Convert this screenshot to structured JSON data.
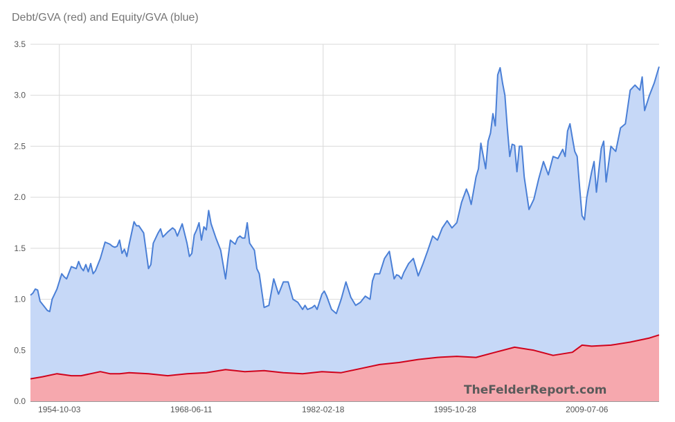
{
  "chart_data": {
    "type": "area",
    "title": "Debt/GVA (red) and Equity/GVA (blue)",
    "watermark": "TheFelderReport.com",
    "xlabel": "",
    "ylabel": "",
    "ylim": [
      0,
      3.5
    ],
    "y_ticks": [
      "0.0",
      "0.5",
      "1.0",
      "1.5",
      "2.0",
      "2.5",
      "3.0",
      "3.5"
    ],
    "x_ticks": [
      "1954-10-03",
      "1968-06-11",
      "1982-02-18",
      "1995-10-28",
      "2009-07-06"
    ],
    "x_tick_years": [
      1954.75,
      1968.44,
      1982.13,
      1995.82,
      2009.51
    ],
    "x_range": [
      1951.75,
      2017.0
    ],
    "grid": true,
    "legend": "none",
    "colors": {
      "equity_line": "#4a7fd6",
      "equity_fill": "#c6d8f7",
      "debt_line": "#d0021b",
      "debt_fill": "#f6a8ae"
    },
    "series": [
      {
        "name": "Equity/GVA",
        "color": "blue",
        "x": [
          1951.75,
          1952.0,
          1952.25,
          1952.5,
          1952.75,
          1953.0,
          1953.5,
          1953.75,
          1954.0,
          1954.5,
          1955.0,
          1955.25,
          1955.5,
          1956.0,
          1956.5,
          1956.75,
          1957.0,
          1957.25,
          1957.5,
          1957.75,
          1958.0,
          1958.25,
          1958.5,
          1959.0,
          1959.5,
          1960.0,
          1960.25,
          1960.5,
          1960.75,
          1961.0,
          1961.25,
          1961.5,
          1961.75,
          1962.0,
          1962.5,
          1962.75,
          1963.0,
          1963.5,
          1964.0,
          1964.25,
          1964.5,
          1965.0,
          1965.25,
          1965.5,
          1966.0,
          1966.5,
          1966.75,
          1967.0,
          1967.5,
          1968.0,
          1968.25,
          1968.5,
          1968.75,
          1969.0,
          1969.25,
          1969.5,
          1969.75,
          1970.0,
          1970.25,
          1970.5,
          1971.0,
          1971.5,
          1972.0,
          1972.25,
          1972.5,
          1973.0,
          1973.25,
          1973.5,
          1973.75,
          1974.0,
          1974.25,
          1974.5,
          1975.0,
          1975.25,
          1975.5,
          1976.0,
          1976.5,
          1977.0,
          1977.5,
          1978.0,
          1978.5,
          1979.0,
          1979.5,
          1980.0,
          1980.25,
          1980.5,
          1981.0,
          1981.25,
          1981.5,
          1982.0,
          1982.25,
          1982.5,
          1983.0,
          1983.5,
          1984.0,
          1984.5,
          1985.0,
          1985.5,
          1986.0,
          1986.5,
          1987.0,
          1987.25,
          1987.5,
          1988.0,
          1988.5,
          1989.0,
          1989.5,
          1989.75,
          1990.0,
          1990.25,
          1990.5,
          1991.0,
          1991.5,
          1992.0,
          1992.5,
          1993.0,
          1993.5,
          1994.0,
          1994.5,
          1995.0,
          1995.5,
          1996.0,
          1996.5,
          1997.0,
          1997.25,
          1997.5,
          1998.0,
          1998.25,
          1998.5,
          1999.0,
          1999.25,
          1999.5,
          1999.75,
          2000.0,
          2000.25,
          2000.5,
          2000.75,
          2001.0,
          2001.25,
          2001.5,
          2001.75,
          2002.0,
          2002.25,
          2002.5,
          2002.75,
          2003.0,
          2003.5,
          2004.0,
          2004.5,
          2005.0,
          2005.5,
          2006.0,
          2006.5,
          2007.0,
          2007.25,
          2007.5,
          2007.75,
          2008.0,
          2008.25,
          2008.5,
          2008.75,
          2009.0,
          2009.25,
          2009.5,
          2010.0,
          2010.25,
          2010.5,
          2011.0,
          2011.25,
          2011.5,
          2012.0,
          2012.5,
          2013.0,
          2013.5,
          2014.0,
          2014.5,
          2015.0,
          2015.25,
          2015.5,
          2016.0,
          2016.5,
          2017.0
        ],
        "values": [
          1.04,
          1.06,
          1.1,
          1.09,
          0.98,
          0.95,
          0.89,
          0.88,
          1.0,
          1.1,
          1.25,
          1.22,
          1.2,
          1.32,
          1.3,
          1.37,
          1.31,
          1.28,
          1.34,
          1.27,
          1.35,
          1.25,
          1.28,
          1.4,
          1.56,
          1.54,
          1.52,
          1.51,
          1.52,
          1.58,
          1.45,
          1.49,
          1.42,
          1.54,
          1.76,
          1.72,
          1.72,
          1.65,
          1.3,
          1.34,
          1.55,
          1.65,
          1.69,
          1.61,
          1.66,
          1.7,
          1.68,
          1.62,
          1.74,
          1.55,
          1.42,
          1.45,
          1.63,
          1.68,
          1.75,
          1.58,
          1.71,
          1.68,
          1.87,
          1.74,
          1.6,
          1.48,
          1.2,
          1.4,
          1.58,
          1.54,
          1.6,
          1.62,
          1.6,
          1.6,
          1.75,
          1.55,
          1.48,
          1.3,
          1.25,
          0.92,
          0.94,
          1.2,
          1.05,
          1.17,
          1.17,
          1.0,
          0.97,
          0.9,
          0.94,
          0.9,
          0.92,
          0.94,
          0.9,
          1.05,
          1.08,
          1.03,
          0.9,
          0.86,
          1.0,
          1.17,
          1.02,
          0.94,
          0.97,
          1.03,
          1.0,
          1.18,
          1.25,
          1.25,
          1.4,
          1.47,
          1.2,
          1.24,
          1.23,
          1.2,
          1.26,
          1.35,
          1.4,
          1.23,
          1.35,
          1.48,
          1.62,
          1.58,
          1.7,
          1.77,
          1.7,
          1.75,
          1.95,
          2.08,
          2.02,
          1.93,
          2.2,
          2.28,
          2.53,
          2.28,
          2.55,
          2.63,
          2.82,
          2.7,
          3.2,
          3.27,
          3.12,
          3.0,
          2.68,
          2.4,
          2.52,
          2.51,
          2.25,
          2.5,
          2.5,
          2.2,
          1.88,
          1.98,
          2.18,
          2.35,
          2.22,
          2.4,
          2.38,
          2.47,
          2.4,
          2.65,
          2.72,
          2.58,
          2.45,
          2.4,
          2.1,
          1.82,
          1.78,
          2.0,
          2.25,
          2.35,
          2.05,
          2.48,
          2.55,
          2.15,
          2.5,
          2.45,
          2.68,
          2.72,
          3.05,
          3.1,
          3.05,
          3.18,
          2.85,
          3.0,
          3.12,
          3.28
        ]
      },
      {
        "name": "Debt/GVA",
        "color": "red",
        "x": [
          1951.75,
          1953.0,
          1954.5,
          1956.0,
          1957.0,
          1958.0,
          1959.0,
          1960.0,
          1961.0,
          1962.0,
          1964.0,
          1966.0,
          1968.0,
          1970.0,
          1972.0,
          1974.0,
          1976.0,
          1978.0,
          1980.0,
          1982.0,
          1984.0,
          1986.0,
          1988.0,
          1990.0,
          1992.0,
          1994.0,
          1996.0,
          1998.0,
          2000.0,
          2002.0,
          2004.0,
          2006.0,
          2008.0,
          2009.0,
          2010.0,
          2012.0,
          2014.0,
          2016.0,
          2017.0
        ],
        "values": [
          0.22,
          0.24,
          0.27,
          0.25,
          0.25,
          0.27,
          0.29,
          0.27,
          0.27,
          0.28,
          0.27,
          0.25,
          0.27,
          0.28,
          0.31,
          0.29,
          0.3,
          0.28,
          0.27,
          0.29,
          0.28,
          0.32,
          0.36,
          0.38,
          0.41,
          0.43,
          0.44,
          0.43,
          0.48,
          0.53,
          0.5,
          0.45,
          0.48,
          0.55,
          0.54,
          0.55,
          0.58,
          0.62,
          0.65
        ]
      }
    ]
  }
}
